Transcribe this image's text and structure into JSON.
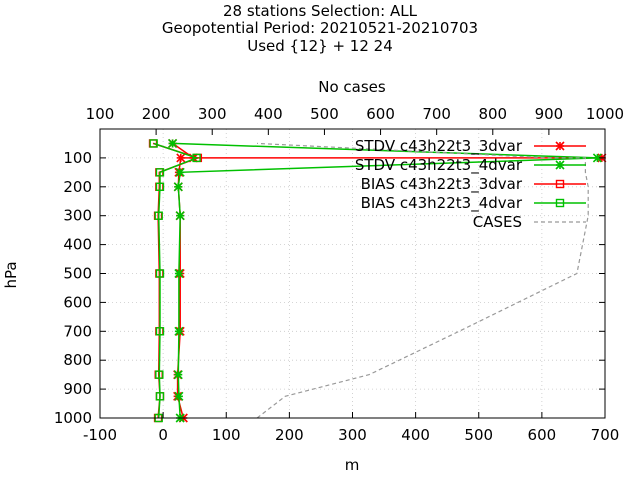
{
  "chart_data": {
    "type": "line",
    "title_lines": [
      "28 stations Selection: ALL",
      "Geopotential  Period: 20210521-20210703",
      "Used {12} + 12 24"
    ],
    "xlabel": "m",
    "ylabel": "hPa",
    "x2label": "No cases",
    "xlim": [
      -100,
      700
    ],
    "x2lim": [
      100,
      1000
    ],
    "ylim": [
      1000,
      0
    ],
    "xticks": [
      -100,
      0,
      100,
      200,
      300,
      400,
      500,
      600,
      700
    ],
    "x2ticks": [
      100,
      200,
      300,
      400,
      500,
      600,
      700,
      800,
      900,
      1000
    ],
    "yticks": [
      100,
      200,
      300,
      400,
      500,
      600,
      700,
      800,
      900,
      1000
    ],
    "grid": true,
    "legend_position": "top-right",
    "series": [
      {
        "name": "STDV c43h22t3_3dvar",
        "color": "#ff0000",
        "marker": "x-star",
        "axis": "bottom",
        "x": [
          32,
          23,
          23,
          27,
          27,
          27,
          24,
          25,
          28,
          695,
          48,
          15
        ],
        "y": [
          1000,
          925,
          850,
          700,
          500,
          300,
          200,
          150,
          100,
          100,
          100,
          50
        ]
      },
      {
        "name": "STDV c43h22t3_4dvar",
        "color": "#00c000",
        "marker": "x-star",
        "axis": "bottom",
        "x": [
          27,
          25,
          24,
          25,
          25,
          27,
          24,
          27,
          688,
          15
        ],
        "y": [
          1000,
          925,
          850,
          700,
          500,
          300,
          200,
          150,
          100,
          50
        ]
      },
      {
        "name": "BIAS c43h22t3_3dvar",
        "color": "#ff0000",
        "marker": "square",
        "axis": "bottom",
        "x": [
          -8,
          -5,
          -7,
          -6,
          -6,
          -8,
          -6,
          -6,
          55,
          -16
        ],
        "y": [
          1000,
          925,
          850,
          700,
          500,
          300,
          200,
          150,
          100,
          50
        ]
      },
      {
        "name": "BIAS c43h22t3_4dvar",
        "color": "#00c000",
        "marker": "square",
        "axis": "bottom",
        "x": [
          -7,
          -5,
          -6,
          -5,
          -5,
          -7,
          -5,
          -5,
          53,
          -15
        ],
        "y": [
          1000,
          925,
          850,
          700,
          500,
          300,
          200,
          150,
          100,
          50
        ]
      },
      {
        "name": "CASES",
        "color": "#999999",
        "marker": "none",
        "dashed": true,
        "axis": "top",
        "x": [
          380,
          430,
          580,
          740,
          950,
          970,
          970,
          965,
          965,
          960,
          900,
          380
        ],
        "y": [
          1000,
          925,
          850,
          700,
          500,
          300,
          200,
          150,
          100,
          100,
          100,
          50
        ]
      }
    ]
  }
}
